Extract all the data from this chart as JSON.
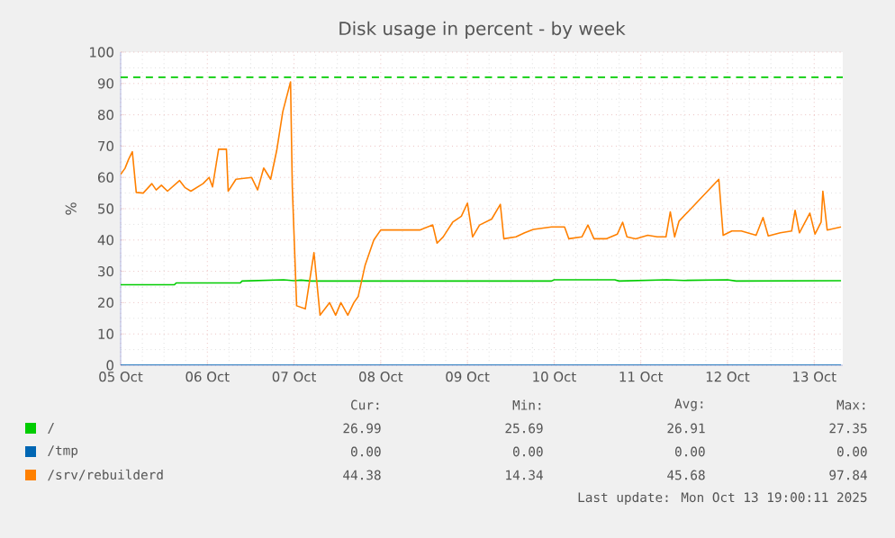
{
  "chart_data": {
    "type": "line",
    "title": "Disk usage in percent - by week",
    "ylabel": "%",
    "xlim": [
      "2025-10-05T12:00",
      "2025-10-13T19:55"
    ],
    "ylim": [
      0,
      100
    ],
    "xticks": [
      {
        "value": "2025-10-05T12:00",
        "label": "05 Oct"
      },
      {
        "value": "2025-10-06T12:00",
        "label": "06 Oct"
      },
      {
        "value": "2025-10-07T12:00",
        "label": "07 Oct"
      },
      {
        "value": "2025-10-08T12:00",
        "label": "08 Oct"
      },
      {
        "value": "2025-10-09T12:00",
        "label": "09 Oct"
      },
      {
        "value": "2025-10-10T12:00",
        "label": "10 Oct"
      },
      {
        "value": "2025-10-11T12:00",
        "label": "11 Oct"
      },
      {
        "value": "2025-10-12T12:00",
        "label": "12 Oct"
      },
      {
        "value": "2025-10-13T12:00",
        "label": "13 Oct"
      }
    ],
    "yticks": [
      0,
      10,
      20,
      30,
      40,
      50,
      60,
      70,
      80,
      90,
      100
    ],
    "grid": true,
    "legend": "bottom",
    "marker": "none",
    "line_style": "solid",
    "ref_lines": [
      {
        "axis": "y",
        "value": 92,
        "color": "#00cc00",
        "line_style": "dashed"
      }
    ],
    "series": [
      {
        "name": "/",
        "color": "#00cc00",
        "x": [
          "2025-10-05T12:00",
          "2025-10-06T02:53",
          "2025-10-06T03:22",
          "2025-10-06T21:07",
          "2025-10-06T21:36",
          "2025-10-07T09:07",
          "2025-10-07T12:00",
          "2025-10-07T13:55",
          "2025-10-07T16:48",
          "2025-10-10T11:17",
          "2025-10-10T12:00",
          "2025-10-11T04:48",
          "2025-10-11T06:00",
          "2025-10-11T19:12",
          "2025-10-12T00:00",
          "2025-10-12T12:00",
          "2025-10-12T14:24",
          "2025-10-13T19:26"
        ],
        "values": [
          25.7,
          25.7,
          26.3,
          26.3,
          26.9,
          27.3,
          27.0,
          27.2,
          26.9,
          26.9,
          27.3,
          27.3,
          26.9,
          27.3,
          27.1,
          27.3,
          26.9,
          27.0
        ]
      },
      {
        "name": "/tmp",
        "color": "#0066b3",
        "x": [
          "2025-10-05T12:00",
          "2025-10-13T19:26"
        ],
        "values": [
          0,
          0
        ]
      },
      {
        "name": "/srv/rebuilderd",
        "color": "#ff8000",
        "x": [
          "2025-10-05T12:00",
          "2025-10-05T13:12",
          "2025-10-05T14:10",
          "2025-10-05T15:14",
          "2025-10-05T16:19",
          "2025-10-05T18:14",
          "2025-10-05T20:38",
          "2025-10-05T21:50",
          "2025-10-05T23:17",
          "2025-10-06T00:58",
          "2025-10-06T04:19",
          "2025-10-06T05:46",
          "2025-10-06T07:26",
          "2025-10-06T10:48",
          "2025-10-06T12:29",
          "2025-10-06T13:26",
          "2025-10-06T15:07",
          "2025-10-06T17:17",
          "2025-10-06T17:46",
          "2025-10-06T19:55",
          "2025-10-07T00:14",
          "2025-10-07T01:55",
          "2025-10-07T03:36",
          "2025-10-07T05:31",
          "2025-10-07T07:12",
          "2025-10-07T08:53",
          "2025-10-07T11:02",
          "2025-10-07T11:31",
          "2025-10-07T12:43",
          "2025-10-07T15:07",
          "2025-10-07T17:31",
          "2025-10-07T19:12",
          "2025-10-07T21:50",
          "2025-10-07T23:31",
          "2025-10-08T00:58",
          "2025-10-08T02:53",
          "2025-10-08T04:34",
          "2025-10-08T05:46",
          "2025-10-08T07:41",
          "2025-10-08T10:05",
          "2025-10-08T12:00",
          "2025-10-08T22:48",
          "2025-10-09T02:24",
          "2025-10-09T03:36",
          "2025-10-09T05:17",
          "2025-10-09T07:55",
          "2025-10-09T10:19",
          "2025-10-09T12:00",
          "2025-10-09T13:26",
          "2025-10-09T15:22",
          "2025-10-09T18:43",
          "2025-10-09T21:07",
          "2025-10-09T22:05",
          "2025-10-10T01:26",
          "2025-10-10T03:50",
          "2025-10-10T06:14",
          "2025-10-10T11:17",
          "2025-10-10T14:53",
          "2025-10-10T16:05",
          "2025-10-10T19:41",
          "2025-10-10T21:22",
          "2025-10-10T23:02",
          "2025-10-11T02:24",
          "2025-10-11T05:31",
          "2025-10-11T06:58",
          "2025-10-11T08:10",
          "2025-10-11T10:34",
          "2025-10-11T13:55",
          "2025-10-11T16:34",
          "2025-10-11T18:58",
          "2025-10-11T20:10",
          "2025-10-11T21:22",
          "2025-10-11T22:34",
          "2025-10-12T09:36",
          "2025-10-12T10:48",
          "2025-10-12T13:12",
          "2025-10-12T15:50",
          "2025-10-12T19:55",
          "2025-10-12T21:50",
          "2025-10-12T23:17",
          "2025-10-13T02:38",
          "2025-10-13T05:46",
          "2025-10-13T06:43",
          "2025-10-13T07:55",
          "2025-10-13T10:48",
          "2025-10-13T12:14",
          "2025-10-13T13:55",
          "2025-10-13T14:24",
          "2025-10-13T15:36",
          "2025-10-13T19:26"
        ],
        "values": [
          61,
          62.9,
          65.7,
          68.2,
          55.2,
          55,
          58,
          56,
          57.5,
          55.6,
          59,
          56.8,
          55.6,
          58,
          60,
          57,
          69,
          69,
          55.6,
          59.4,
          60,
          56,
          63,
          59.4,
          68.6,
          81,
          90.5,
          57,
          19,
          18,
          36,
          16,
          20,
          16,
          20,
          16,
          20,
          22,
          32,
          40,
          43.2,
          43.2,
          44.8,
          39,
          41,
          45.7,
          47.6,
          51.8,
          41,
          44.8,
          46.7,
          51.4,
          40.4,
          41,
          42.3,
          43.4,
          44.2,
          44.2,
          40.4,
          41,
          44.8,
          40.4,
          40.4,
          41.9,
          45.7,
          41,
          40.4,
          41.5,
          41,
          41,
          49,
          41,
          46,
          59.4,
          41.5,
          42.9,
          42.9,
          41.5,
          47.2,
          41.3,
          42.3,
          42.9,
          49.5,
          42.3,
          48.6,
          41.9,
          45.7,
          55.6,
          43.2,
          44.2
        ]
      }
    ],
    "annotations": [
      "Cur:",
      "Min:",
      "Avg:",
      "Max:",
      "26.99",
      "25.69",
      "26.91",
      "27.35",
      "0.00",
      "0.00",
      "0.00",
      "0.00",
      "44.38",
      "14.34",
      "45.68",
      "97.84",
      "Last update: Mon Oct 13 19:00:11 2025"
    ]
  }
}
